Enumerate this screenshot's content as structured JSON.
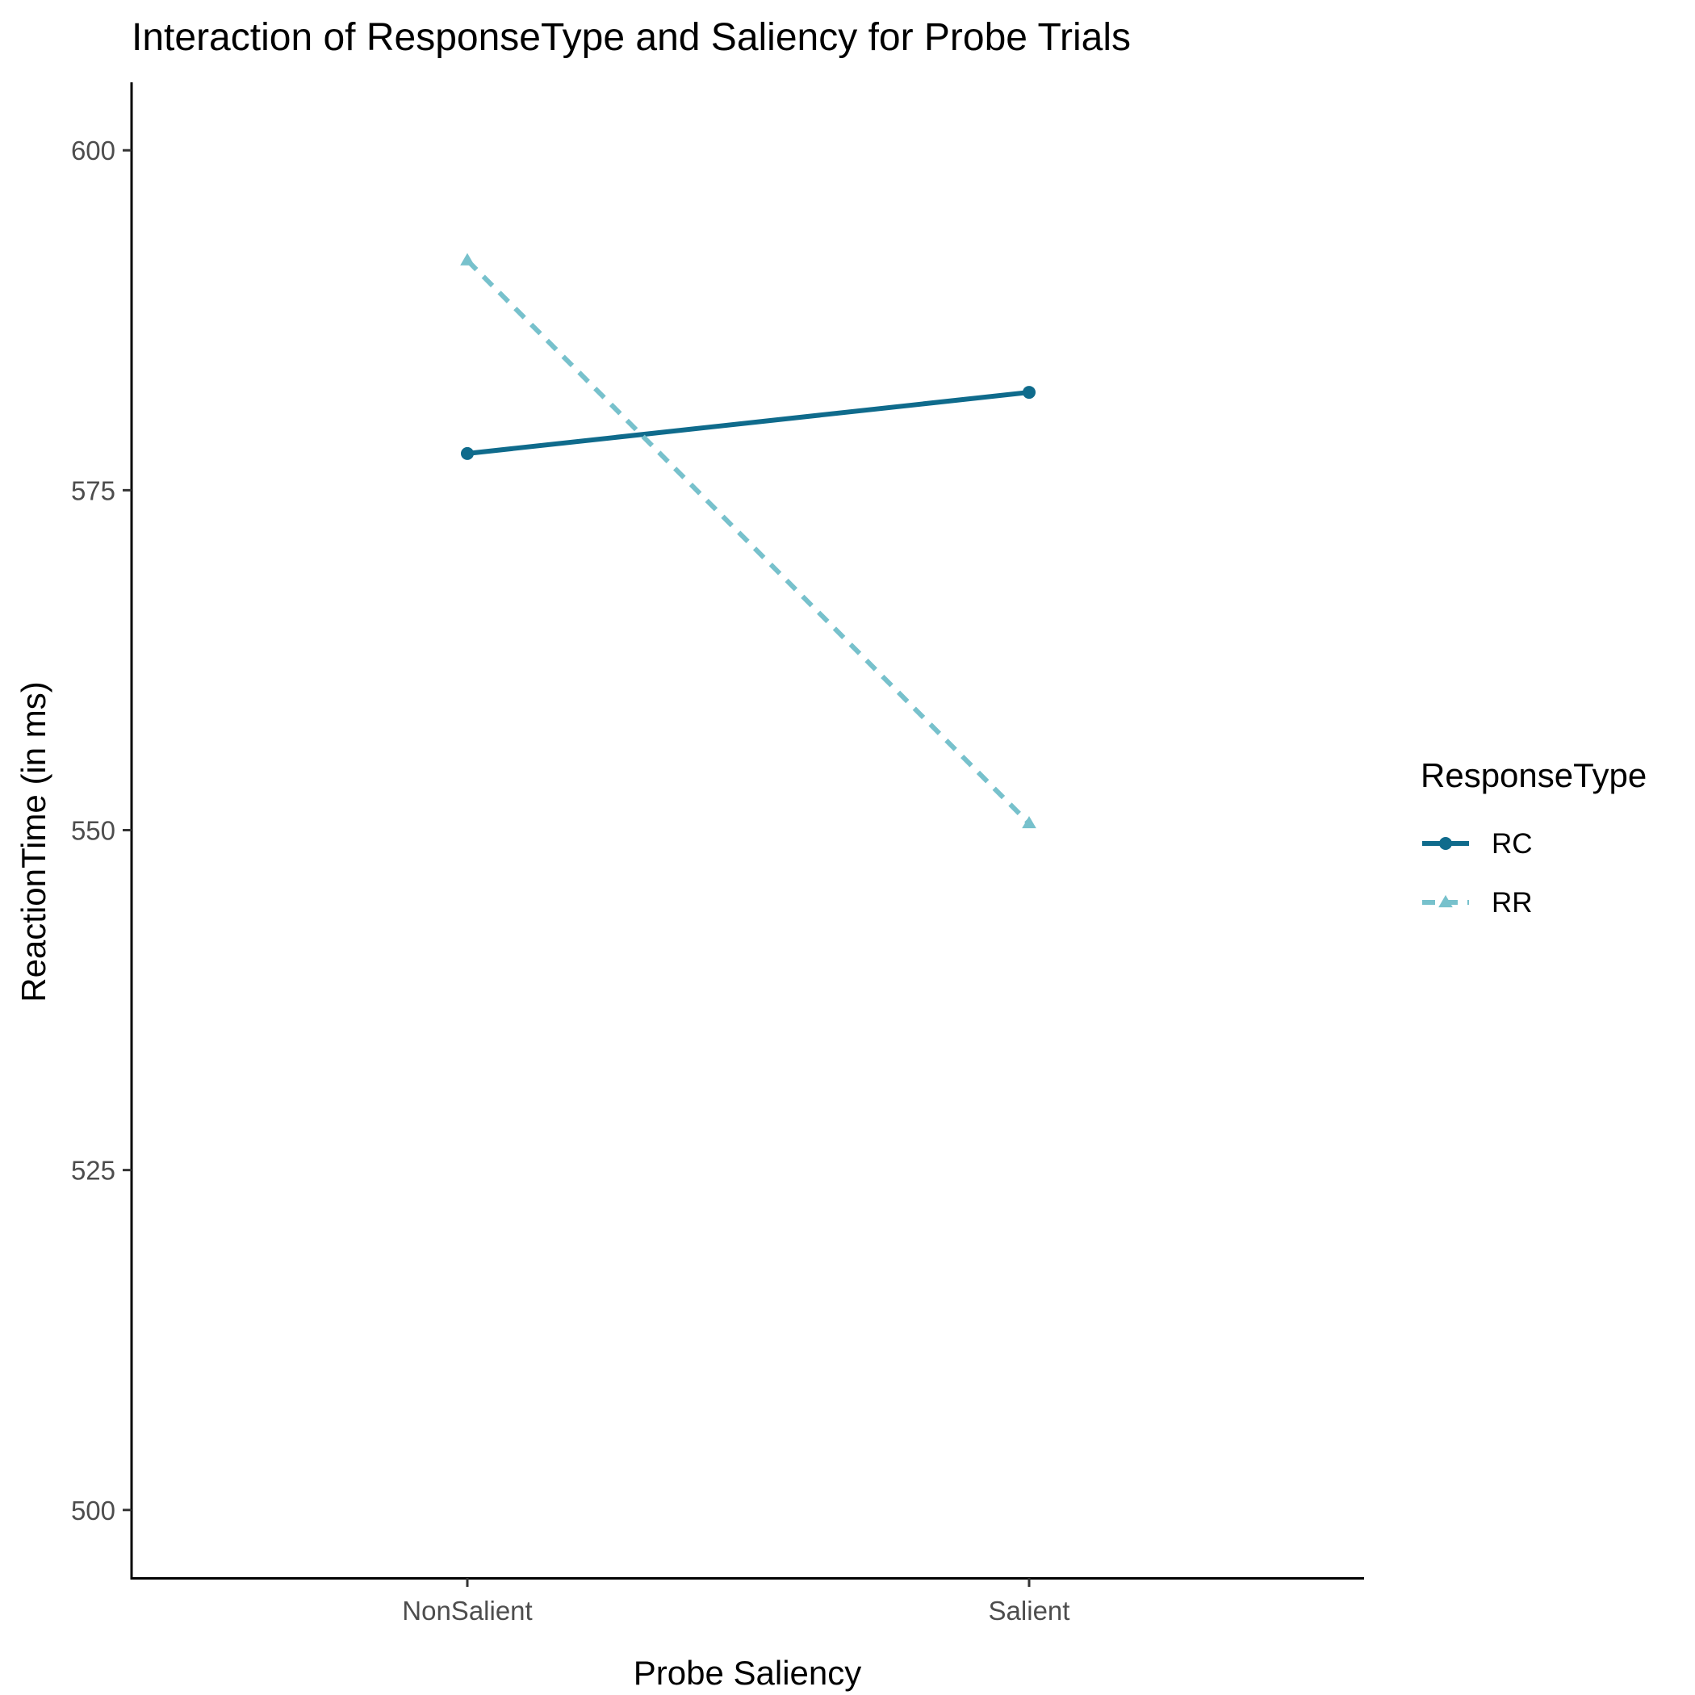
{
  "chart_data": {
    "type": "line",
    "title": "Interaction of ResponseType and Saliency for Probe Trials",
    "xlabel": "Probe Saliency",
    "ylabel": "ReactionTime (in ms)",
    "categories": [
      "NonSalient",
      "Salient"
    ],
    "ylim": [
      495,
      605
    ],
    "yticks": [
      500,
      525,
      550,
      575,
      600
    ],
    "grid": false,
    "legend": {
      "title": "ResponseType",
      "placement": "right"
    },
    "series": [
      {
        "name": "RC",
        "values": [
          577.7,
          582.2
        ],
        "color": "#0f6b8c",
        "line": "solid",
        "marker": "circle"
      },
      {
        "name": "RR",
        "values": [
          591.9,
          550.5
        ],
        "color": "#77c1cc",
        "line": "dashed",
        "marker": "triangle"
      }
    ]
  }
}
